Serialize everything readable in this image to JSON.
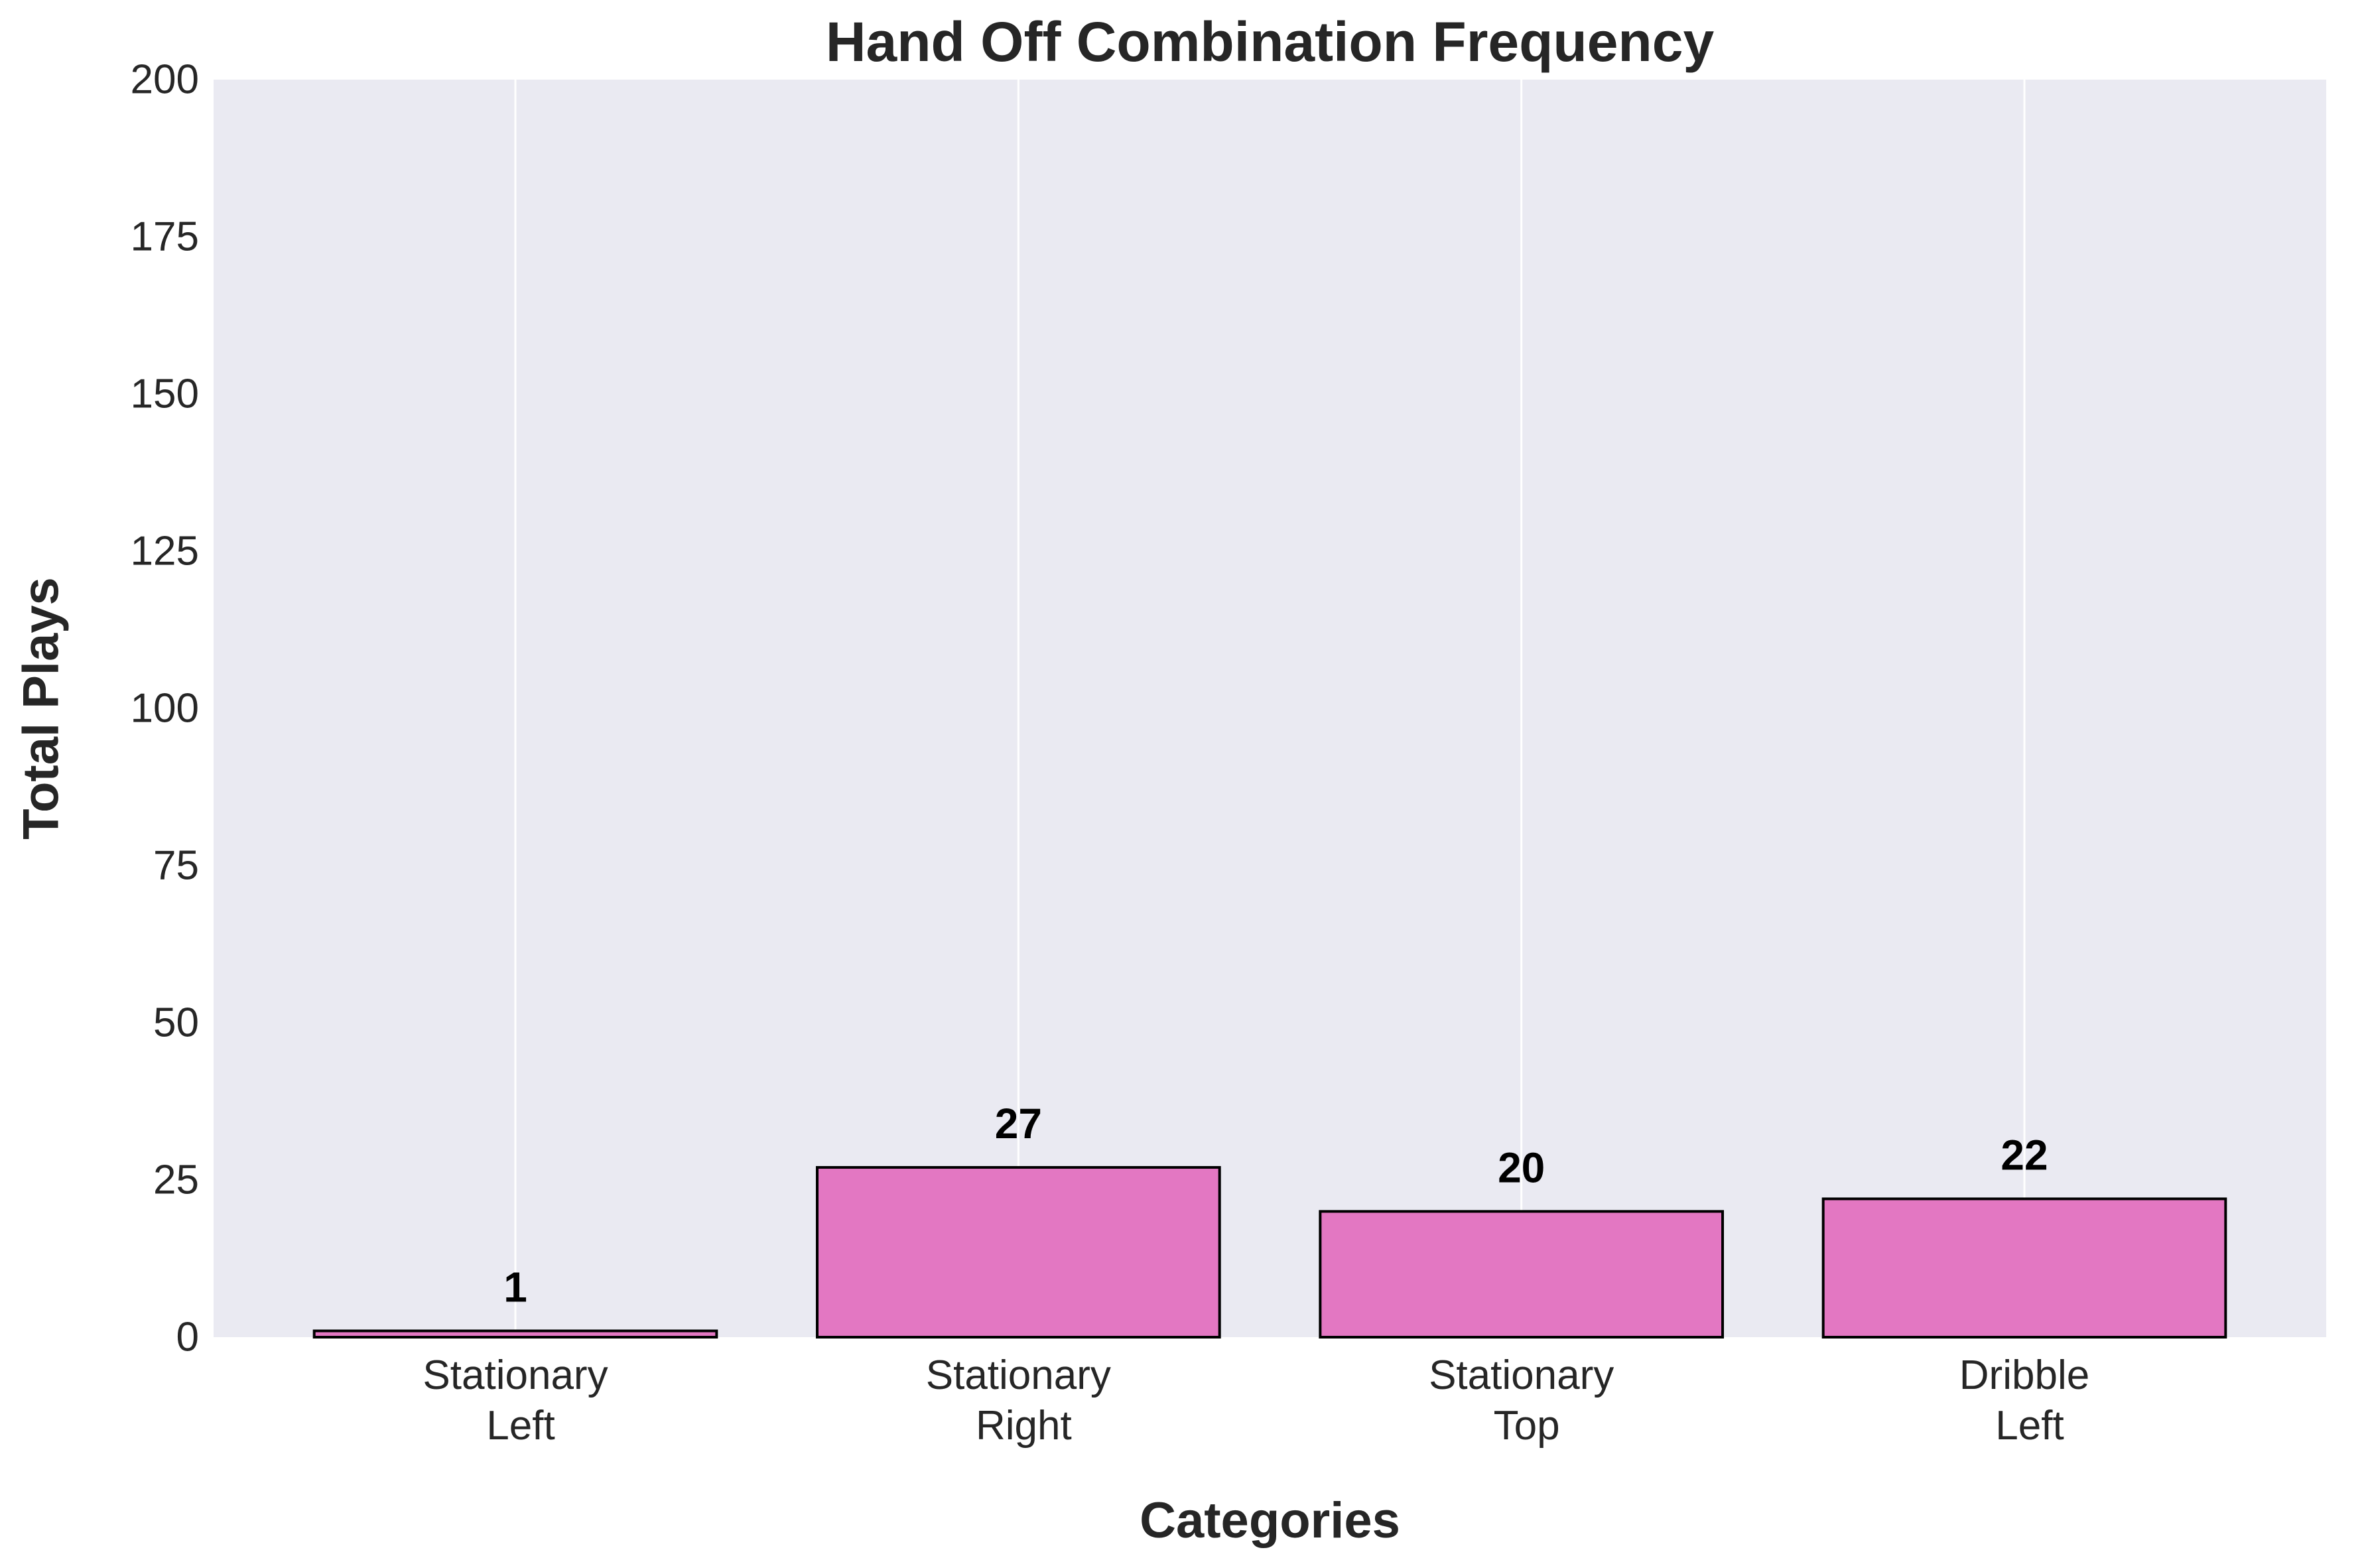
{
  "chart_data": {
    "type": "bar",
    "title": "Hand Off Combination Frequency",
    "xlabel": "Categories",
    "ylabel": "Total Plays",
    "categories": [
      [
        "Stationary",
        "Left"
      ],
      [
        "Stationary",
        "Right"
      ],
      [
        "Stationary",
        "Top"
      ],
      [
        "Dribble",
        "Left"
      ]
    ],
    "values": [
      1,
      27,
      20,
      22
    ],
    "data_labels": [
      "1",
      "27",
      "20",
      "22"
    ],
    "ylim": [
      0,
      200
    ],
    "yticks": [
      0,
      25,
      50,
      75,
      100,
      125,
      150,
      175,
      200
    ],
    "ytick_labels": [
      "0",
      "25",
      "50",
      "75",
      "100",
      "125",
      "150",
      "175",
      "200"
    ],
    "grid": true,
    "grid_axis": "x",
    "legend": "none",
    "colors": {
      "bar_fill": "#e377c2",
      "bar_edge": "#000000",
      "plot_background": "#eaeaf2",
      "grid": "#ffffff",
      "text": "#262626"
    }
  }
}
